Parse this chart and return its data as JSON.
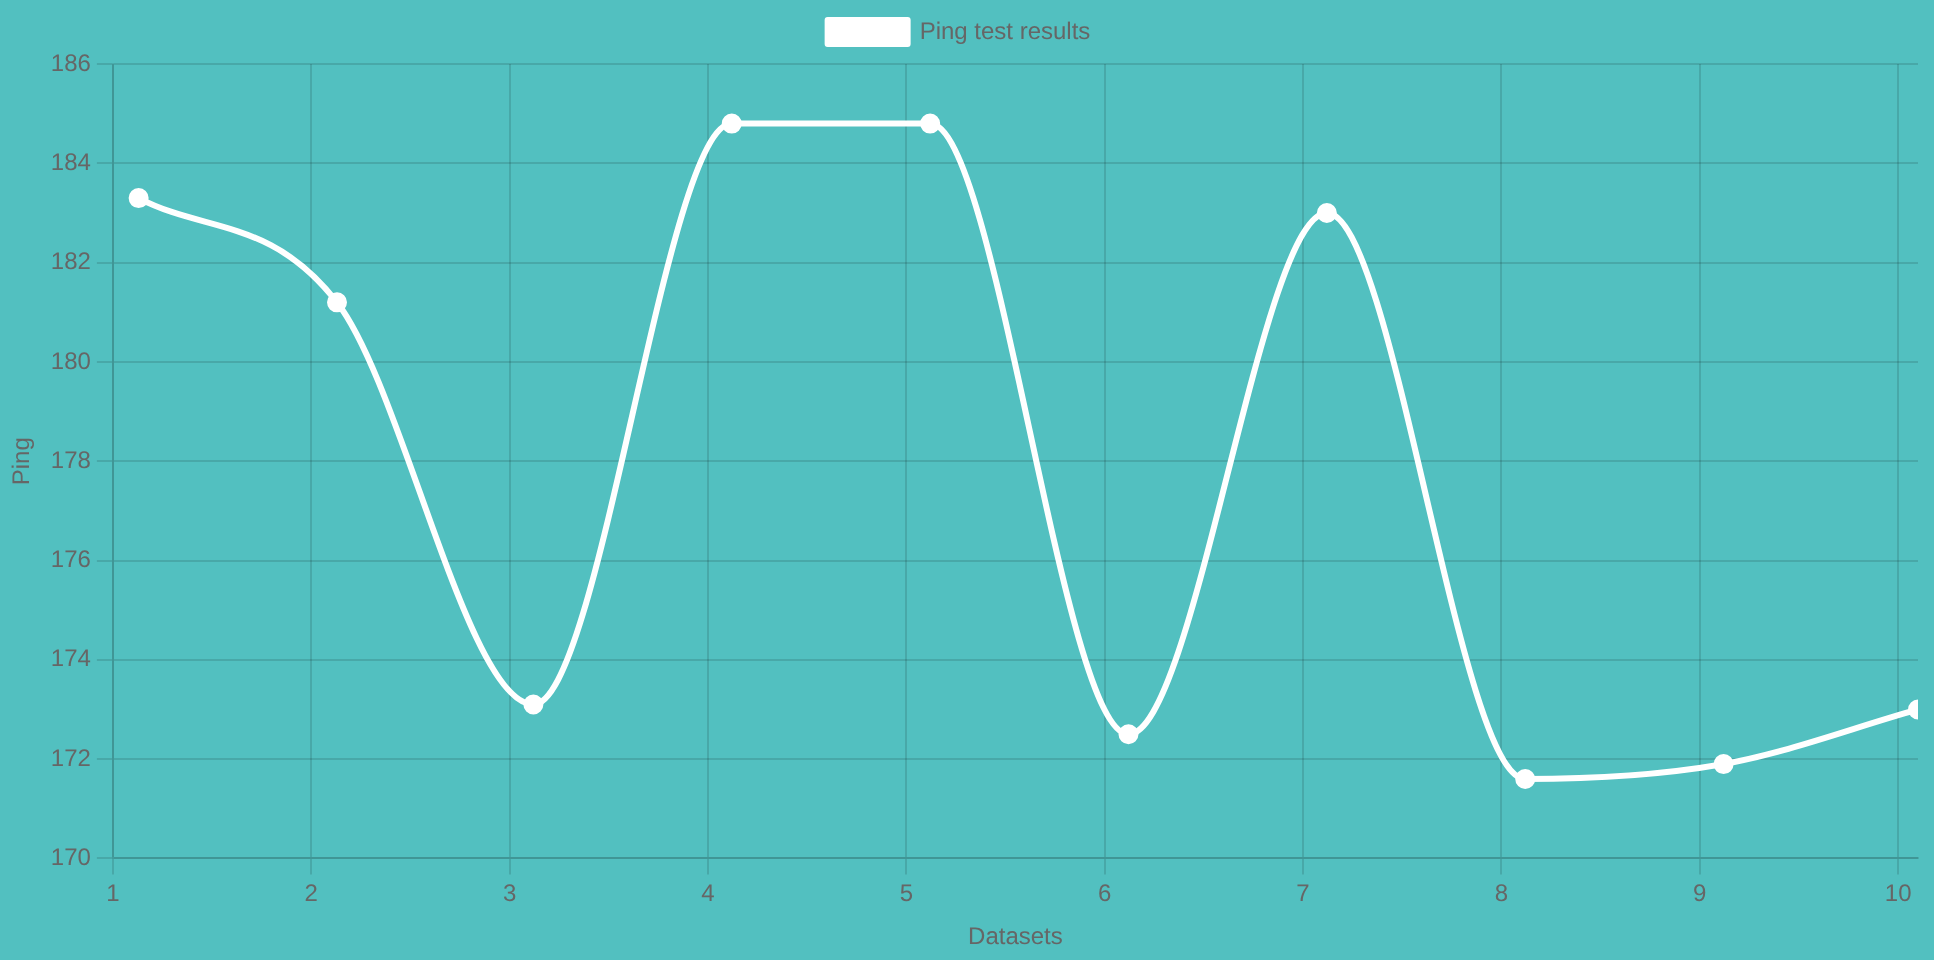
{
  "chart_data": {
    "type": "line",
    "xlabel": "Datasets",
    "ylabel": "Ping",
    "x": [
      1.13,
      2.13,
      3.12,
      4.12,
      5.12,
      6.12,
      7.12,
      8.12,
      9.12,
      10.1
    ],
    "series": [
      {
        "name": "Ping test results",
        "color": "#ffffff",
        "values": [
          183.3,
          181.2,
          173.1,
          184.8,
          184.8,
          172.5,
          183.0,
          171.6,
          171.9,
          173.0
        ]
      }
    ],
    "xlim": [
      1,
      10.1
    ],
    "xticks": [
      1,
      2,
      3,
      4,
      5,
      6,
      7,
      8,
      9,
      10
    ],
    "ylim": [
      170,
      186
    ],
    "yticks": [
      170,
      172,
      174,
      176,
      178,
      180,
      182,
      184,
      186
    ],
    "grid": true,
    "legend": "top",
    "marker": "circle",
    "line_style": "solid"
  }
}
